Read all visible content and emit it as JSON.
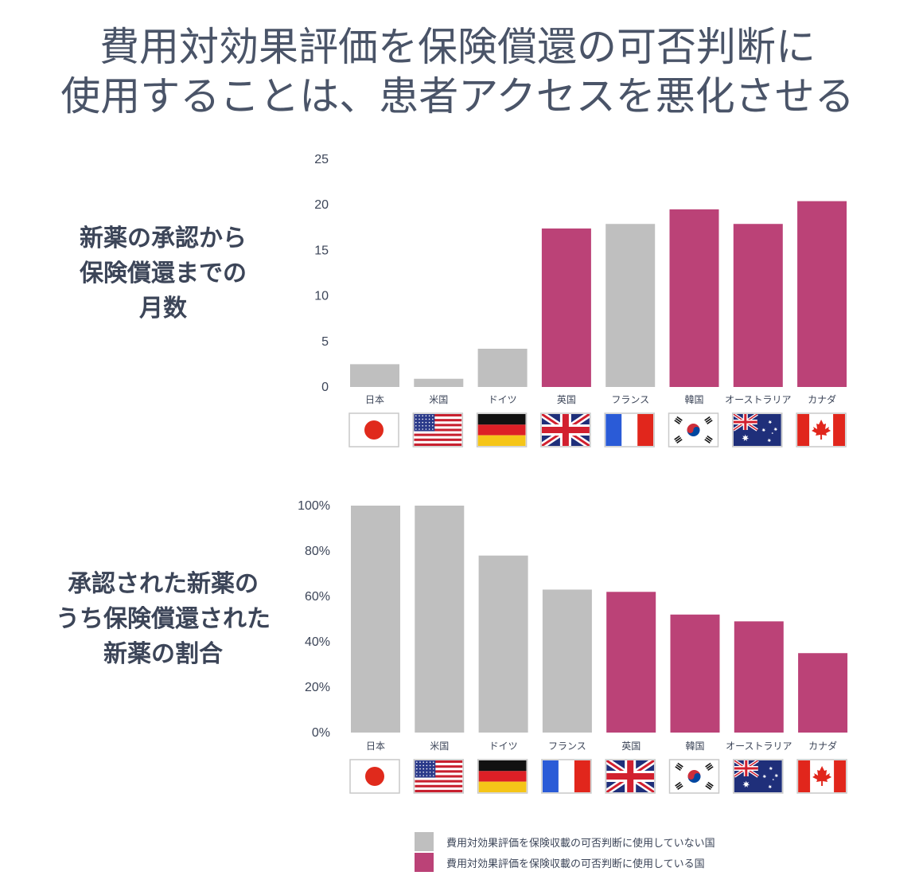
{
  "title": {
    "line1": "費用対効果評価を保険償還の可否判断に",
    "line2": "使用することは、患者アクセスを悪化させる"
  },
  "colors": {
    "not_used": "#bfbfbf",
    "used": "#bb4277"
  },
  "legend": {
    "not_used_label": "費用対効果評価を保険収載の可否判断に使用していない国",
    "used_label": "費用対効果評価を保険収載の可否判断に使用している国"
  },
  "chart_data": [
    {
      "type": "bar",
      "title_lines": [
        "新薬の承認から",
        "保険償還までの",
        "月数"
      ],
      "categories": [
        "日本",
        "米国",
        "ドイツ",
        "英国",
        "フランス",
        "韓国",
        "オーストラリア",
        "カナダ"
      ],
      "flags": [
        "jp",
        "us",
        "de",
        "gb",
        "fr",
        "kr",
        "au",
        "ca"
      ],
      "values": [
        2.5,
        0.9,
        4.2,
        17.4,
        17.9,
        19.5,
        17.9,
        20.4
      ],
      "groups": [
        "not_used",
        "not_used",
        "not_used",
        "used",
        "not_used",
        "used",
        "used",
        "used"
      ],
      "ylim": [
        0,
        25
      ],
      "yticks": [
        0,
        5,
        10,
        15,
        20,
        25
      ],
      "ytick_labels": [
        "0",
        "5",
        "10",
        "15",
        "20",
        "25"
      ],
      "grid": false
    },
    {
      "type": "bar",
      "title_lines": [
        "承認された新薬の",
        "うち保険償還された",
        "新薬の割合"
      ],
      "categories": [
        "日本",
        "米国",
        "ドイツ",
        "フランス",
        "英国",
        "韓国",
        "オーストラリア",
        "カナダ"
      ],
      "flags": [
        "jp",
        "us",
        "de",
        "fr",
        "gb",
        "kr",
        "au",
        "ca"
      ],
      "values": [
        100,
        100,
        78,
        63,
        62,
        52,
        49,
        35
      ],
      "groups": [
        "not_used",
        "not_used",
        "not_used",
        "not_used",
        "used",
        "used",
        "used",
        "used"
      ],
      "ylim": [
        0,
        100
      ],
      "yticks": [
        0,
        20,
        40,
        60,
        80,
        100
      ],
      "ytick_labels": [
        "0%",
        "20%",
        "40%",
        "60%",
        "80%",
        "100%"
      ],
      "grid": false
    }
  ]
}
